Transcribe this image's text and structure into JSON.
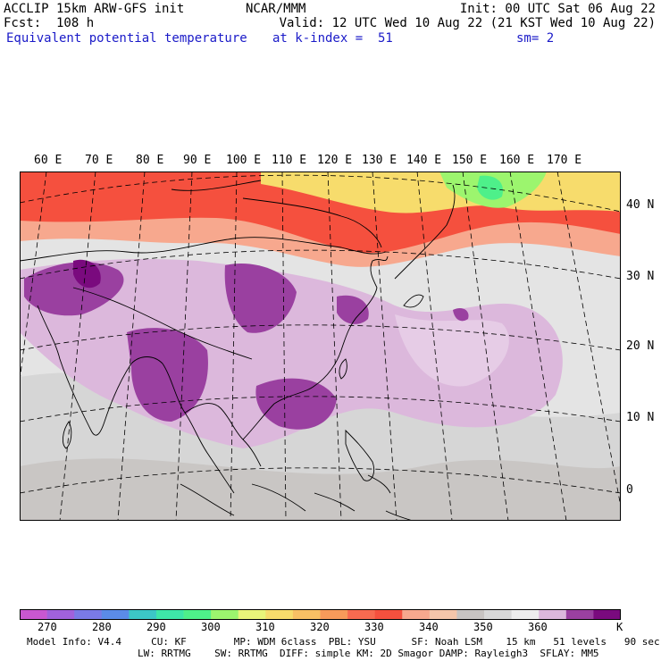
{
  "header": {
    "left1": "ACCLIP 15km ARW-GFS init",
    "left2": "Fcst:  108 h",
    "left3": "Equivalent potential temperature",
    "center": "NCAR/MMM",
    "right1": "Init: 00 UTC Sat 06 Aug 22",
    "right2": "Valid: 12 UTC Wed 10 Aug 22 (21 KST Wed 10 Aug 22)",
    "mid3": "at k-index =  51",
    "right3": "sm= 2"
  },
  "map": {
    "lon_labels": [
      "60 E",
      "70 E",
      "80 E",
      "90 E",
      "100 E",
      "110 E",
      "120 E",
      "130 E",
      "140 E",
      "150 E",
      "160 E",
      "170 E"
    ],
    "lat_labels": [
      "40 N",
      "30 N",
      "20 N",
      "10 N",
      "0"
    ]
  },
  "colorbar": {
    "colors": [
      "#c957d1",
      "#a161dc",
      "#7a7ae6",
      "#5b8be8",
      "#3cc6c6",
      "#3ee6a8",
      "#4ef08a",
      "#9cf56e",
      "#e9f57a",
      "#f7dc6c",
      "#f8c064",
      "#f79a5a",
      "#f76a50",
      "#f5503e",
      "#f7a88e",
      "#f5c6aa",
      "#c8c4c2",
      "#d8d8d8",
      "#ededed",
      "#dcb8dc",
      "#9a40a0",
      "#7a0a7e"
    ],
    "ticks": [
      "270",
      "280",
      "290",
      "300",
      "310",
      "320",
      "330",
      "340",
      "350",
      "360"
    ],
    "unit": "K"
  },
  "footer": {
    "line1": "Model Info: V4.4     CU: KF        MP: WDM 6class  PBL: YSU      SF: Noah LSM    15 km   51 levels   90 sec",
    "line2": "LW: RRTMG    SW: RRTMG  DIFF: simple KM: 2D Smagor DAMP: Rayleigh3  SFLAY: MM5"
  }
}
